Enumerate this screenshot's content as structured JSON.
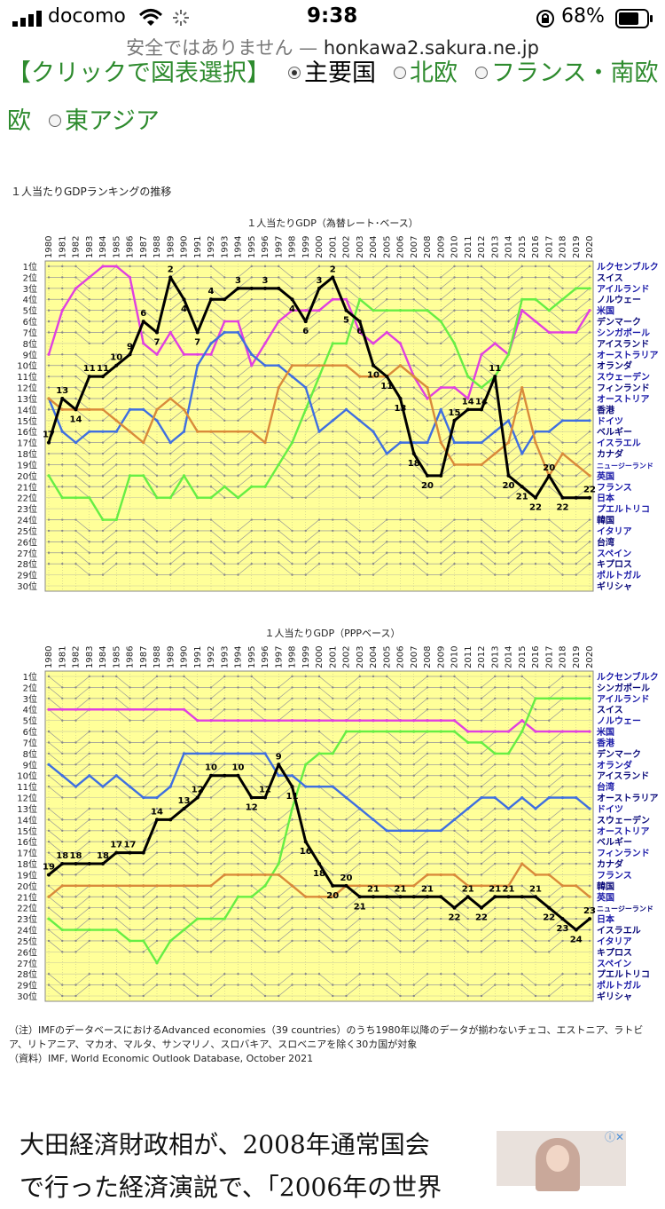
{
  "status_bar": {
    "carrier": "docomo",
    "time": "9:38",
    "battery": "68%"
  },
  "url_bar": {
    "security_text": "安全ではありません —",
    "host": "honkawa2.sakura.ne.jp"
  },
  "selector": {
    "prefix": "【クリックで図表選択】",
    "options": [
      "主要国",
      "北欧",
      "フランス・南欧",
      "東アジア"
    ],
    "option_row2_lead": "欧",
    "selected": "主要国"
  },
  "figure_title": "１人当たりGDPランキングの推移",
  "colors": {
    "plot_bg": "#ffff99",
    "japan": "#000000",
    "usa": "#e040e0",
    "ireland": "#66ee44",
    "germany": "#3f6fe0",
    "uk": "#d98a3a",
    "grey": "#999999",
    "text_green": "#2e8b2e"
  },
  "chart_data": [
    {
      "type": "line",
      "title": "１人当たりGDP（為替レート･ベース）",
      "x": [
        "1980",
        "1981",
        "1982",
        "1983",
        "1984",
        "1985",
        "1986",
        "1987",
        "1988",
        "1989",
        "1990",
        "1991",
        "1992",
        "1993",
        "1994",
        "1995",
        "1996",
        "1997",
        "1998",
        "1999",
        "2000",
        "2001",
        "2002",
        "2003",
        "2004",
        "2005",
        "2006",
        "2007",
        "2008",
        "2009",
        "2010",
        "2011",
        "2012",
        "2013",
        "2014",
        "2015",
        "2016",
        "2017",
        "2018",
        "2019",
        "2020"
      ],
      "y_labels": [
        "1位",
        "2位",
        "3位",
        "4位",
        "5位",
        "6位",
        "7位",
        "8位",
        "9位",
        "10位",
        "11位",
        "12位",
        "13位",
        "14位",
        "15位",
        "16位",
        "17位",
        "18位",
        "19位",
        "20位",
        "21位",
        "22位",
        "23位",
        "24位",
        "25位",
        "26位",
        "27位",
        "28位",
        "29位",
        "30位"
      ],
      "ylim": [
        1,
        30
      ],
      "y_reversed": true,
      "legend": [
        "ルクセンブルク",
        "スイス",
        "アイルランド",
        "ノルウェー",
        "米国",
        "デンマーク",
        "シンガポール",
        "アイスランド",
        "オーストラリア",
        "オランダ",
        "スウェーデン",
        "フィンランド",
        "オーストリア",
        "香港",
        "ドイツ",
        "ベルギー",
        "イスラエル",
        "カナダ",
        "ニュージーランド",
        "英国",
        "フランス",
        "日本",
        "プエルトリコ",
        "韓国",
        "イタリア",
        "台湾",
        "スペイン",
        "キプロス",
        "ポルトガル",
        "ギリシャ"
      ],
      "series": [
        {
          "name": "日本",
          "values": [
            17,
            13,
            14,
            11,
            11,
            10,
            9,
            6,
            7,
            2,
            4,
            7,
            4,
            4,
            3,
            3,
            3,
            3,
            4,
            6,
            3,
            2,
            5,
            6,
            10,
            11,
            13,
            18,
            20,
            20,
            15,
            14,
            14,
            11,
            20,
            21,
            22,
            20,
            22,
            22,
            22
          ]
        },
        {
          "name": "米国",
          "values": [
            9,
            5,
            3,
            2,
            1,
            1,
            2,
            8,
            9,
            7,
            9,
            9,
            9,
            6,
            6,
            10,
            8,
            6,
            5,
            5,
            5,
            4,
            4,
            7,
            8,
            7,
            8,
            11,
            13,
            12,
            12,
            13,
            9,
            8,
            9,
            5,
            6,
            7,
            7,
            7,
            5
          ]
        },
        {
          "name": "アイルランド",
          "values": [
            20,
            22,
            22,
            22,
            24,
            24,
            20,
            20,
            22,
            22,
            20,
            22,
            22,
            21,
            22,
            21,
            21,
            19,
            17,
            14,
            11,
            8,
            8,
            4,
            5,
            5,
            5,
            5,
            5,
            6,
            8,
            11,
            12,
            11,
            9,
            4,
            4,
            5,
            4,
            3,
            3
          ]
        },
        {
          "name": "ドイツ",
          "values": [
            13,
            16,
            17,
            16,
            16,
            16,
            14,
            14,
            15,
            17,
            16,
            10,
            8,
            7,
            7,
            9,
            10,
            10,
            11,
            12,
            16,
            15,
            14,
            15,
            16,
            18,
            17,
            17,
            17,
            14,
            17,
            17,
            17,
            16,
            15,
            18,
            16,
            16,
            15,
            15,
            15
          ]
        },
        {
          "name": "英国",
          "values": [
            13,
            14,
            14,
            14,
            14,
            15,
            16,
            17,
            14,
            13,
            14,
            16,
            16,
            16,
            16,
            16,
            17,
            12,
            10,
            10,
            10,
            10,
            10,
            11,
            11,
            11,
            10,
            11,
            12,
            17,
            19,
            19,
            19,
            18,
            17,
            12,
            17,
            20,
            18,
            19,
            20
          ]
        }
      ],
      "label_series": "日本"
    },
    {
      "type": "line",
      "title": "１人当たりGDP（PPPベース）",
      "x": [
        "1980",
        "1981",
        "1982",
        "1983",
        "1984",
        "1985",
        "1986",
        "1987",
        "1988",
        "1989",
        "1990",
        "1991",
        "1992",
        "1993",
        "1994",
        "1995",
        "1996",
        "1997",
        "1998",
        "1999",
        "2000",
        "2001",
        "2002",
        "2003",
        "2004",
        "2005",
        "2006",
        "2007",
        "2008",
        "2009",
        "2010",
        "2011",
        "2012",
        "2013",
        "2014",
        "2015",
        "2016",
        "2017",
        "2018",
        "2019",
        "2020"
      ],
      "y_labels": [
        "1位",
        "2位",
        "3位",
        "4位",
        "5位",
        "6位",
        "7位",
        "8位",
        "9位",
        "10位",
        "11位",
        "12位",
        "13位",
        "14位",
        "15位",
        "16位",
        "17位",
        "18位",
        "19位",
        "20位",
        "21位",
        "22位",
        "23位",
        "24位",
        "25位",
        "26位",
        "27位",
        "28位",
        "29位",
        "30位"
      ],
      "ylim": [
        1,
        30
      ],
      "y_reversed": true,
      "legend": [
        "ルクセンブルク",
        "シンガポール",
        "アイルランド",
        "スイス",
        "ノルウェー",
        "米国",
        "香港",
        "デンマーク",
        "オランダ",
        "アイスランド",
        "台湾",
        "オーストラリア",
        "ドイツ",
        "スウェーデン",
        "オーストリア",
        "ベルギー",
        "フィンランド",
        "カナダ",
        "フランス",
        "韓国",
        "英国",
        "ニュージーランド",
        "日本",
        "イスラエル",
        "イタリア",
        "キプロス",
        "スペイン",
        "プエルトリコ",
        "ポルトガル",
        "ギリシャ"
      ],
      "series": [
        {
          "name": "日本",
          "values": [
            19,
            18,
            18,
            18,
            18,
            17,
            17,
            17,
            14,
            14,
            13,
            12,
            10,
            10,
            10,
            12,
            12,
            9,
            11,
            16,
            18,
            20,
            20,
            21,
            21,
            21,
            21,
            21,
            21,
            21,
            22,
            21,
            22,
            21,
            21,
            21,
            21,
            22,
            23,
            24,
            23
          ]
        },
        {
          "name": "米国",
          "values": [
            4,
            4,
            4,
            4,
            4,
            4,
            4,
            4,
            4,
            4,
            4,
            5,
            5,
            5,
            5,
            5,
            5,
            5,
            5,
            5,
            5,
            5,
            5,
            5,
            5,
            5,
            5,
            5,
            5,
            5,
            5,
            6,
            6,
            6,
            6,
            5,
            6,
            6,
            6,
            6,
            6
          ]
        },
        {
          "name": "アイルランド",
          "values": [
            23,
            24,
            24,
            24,
            24,
            24,
            25,
            25,
            27,
            25,
            24,
            23,
            23,
            23,
            21,
            21,
            20,
            18,
            13,
            9,
            8,
            8,
            6,
            6,
            6,
            6,
            6,
            6,
            6,
            6,
            6,
            7,
            7,
            8,
            8,
            6,
            3,
            3,
            3,
            3,
            3
          ]
        },
        {
          "name": "ドイツ",
          "values": [
            9,
            10,
            11,
            10,
            11,
            10,
            11,
            12,
            12,
            11,
            8,
            8,
            8,
            8,
            8,
            8,
            8,
            10,
            10,
            11,
            11,
            11,
            12,
            13,
            14,
            15,
            15,
            15,
            15,
            15,
            14,
            13,
            12,
            12,
            13,
            12,
            13,
            12,
            12,
            12,
            13
          ]
        },
        {
          "name": "英国",
          "values": [
            21,
            20,
            20,
            20,
            20,
            20,
            20,
            20,
            20,
            20,
            20,
            20,
            20,
            19,
            19,
            19,
            19,
            19,
            20,
            21,
            21,
            21,
            20,
            20,
            20,
            20,
            20,
            20,
            19,
            19,
            19,
            20,
            20,
            20,
            20,
            18,
            19,
            19,
            20,
            20,
            21
          ]
        }
      ],
      "label_series": "日本"
    }
  ],
  "notes": [
    "（注）IMFのデータベースにおけるAdvanced economies（39 countries）のうち1980年以降のデータが揃わないチェコ、エストニア、ラトビア、リトアニア、マカオ、マルタ、サンマリノ、スロバキア、スロベニアを除く30カ国が対象",
    "（資料）IMF, World Economic Outlook Database, October 2021"
  ],
  "article": {
    "line1": "大田経済財政相が、2008年通常国会",
    "line2": "で行った経済演説で、「2006年の世界"
  }
}
